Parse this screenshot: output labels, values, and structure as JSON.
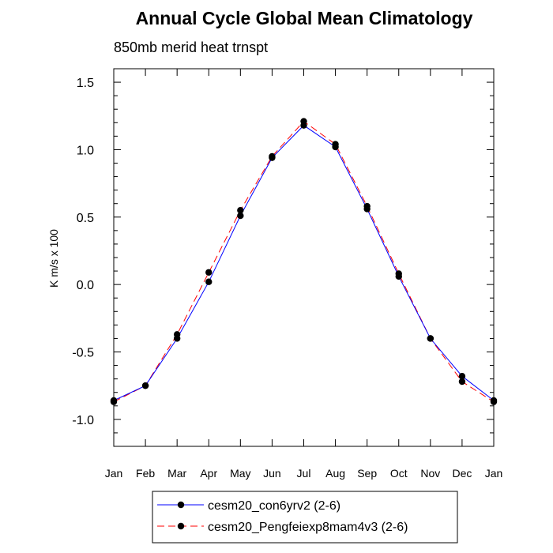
{
  "chart_data": {
    "type": "line",
    "title": "Annual Cycle Global Mean Climatology",
    "subtitle": "850mb merid heat trnspt",
    "xlabel": "",
    "ylabel": "K m/s x 100",
    "categories": [
      "Jan",
      "Feb",
      "Mar",
      "Apr",
      "May",
      "Jun",
      "Jul",
      "Aug",
      "Sep",
      "Oct",
      "Nov",
      "Dec",
      "Jan"
    ],
    "ylim": [
      -1.2,
      1.6
    ],
    "yticks": [
      -1.0,
      -0.5,
      0.0,
      0.5,
      1.0,
      1.5
    ],
    "ytick_labels": [
      "-1.0",
      "-0.5",
      "0.0",
      "0.5",
      "1.0",
      "1.5"
    ],
    "series": [
      {
        "name": "cesm20_con6yrv2 (2-6)",
        "color": "#0000ff",
        "dash": "solid",
        "values": [
          -0.86,
          -0.75,
          -0.4,
          0.02,
          0.51,
          0.94,
          1.18,
          1.02,
          0.56,
          0.06,
          -0.4,
          -0.68,
          -0.86
        ],
        "extra_markers": [
          [
            0,
            -0.87
          ],
          [
            2,
            -0.37
          ],
          [
            3,
            0.09
          ],
          [
            4,
            0.55
          ],
          [
            5,
            0.95
          ],
          [
            6,
            1.21
          ],
          [
            7,
            1.04
          ],
          [
            8,
            0.58
          ],
          [
            9,
            0.08
          ],
          [
            11,
            -0.72
          ]
        ]
      },
      {
        "name": "cesm20_Pengfeiexp8mam4v3 (2-6)",
        "color": "#ff0000",
        "dash": "dashed",
        "values": [
          -0.87,
          -0.75,
          -0.37,
          0.09,
          0.55,
          0.95,
          1.21,
          1.04,
          0.58,
          0.08,
          -0.4,
          -0.72,
          -0.87
        ]
      }
    ],
    "legend_position": "bottom-center",
    "grid": false
  }
}
